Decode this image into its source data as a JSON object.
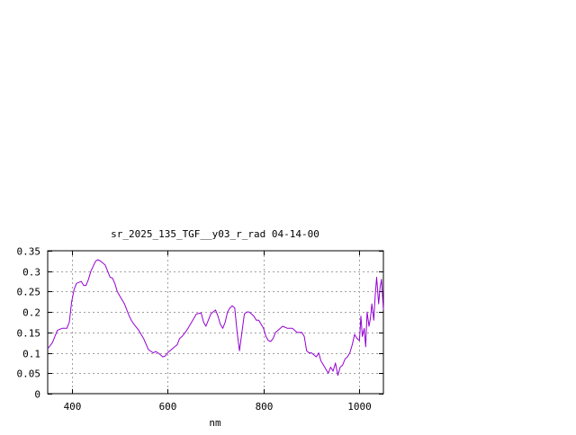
{
  "chart_data": {
    "type": "line",
    "title": "sr_2025_135_TGF__y03_r_rad 04-14-00",
    "xlabel": "nm",
    "ylabel": "",
    "xlim": [
      350,
      1050
    ],
    "ylim": [
      0,
      0.35
    ],
    "xticks": [
      400,
      600,
      800,
      1000
    ],
    "yticks": [
      0,
      0.05,
      0.1,
      0.15,
      0.2,
      0.25,
      0.3,
      0.35
    ],
    "xtick_labels": [
      "400",
      "600",
      "800",
      "1000"
    ],
    "ytick_labels": [
      "0",
      "0.05",
      "0.1",
      "0.15",
      "0.2",
      "0.25",
      "0.3",
      "0.35"
    ],
    "grid": true,
    "line_color": "#9400d3",
    "series": [
      {
        "x": [
          350,
          360,
          370,
          380,
          390,
          395,
          400,
          405,
          410,
          420,
          425,
          430,
          435,
          440,
          450,
          455,
          460,
          470,
          475,
          480,
          485,
          490,
          495,
          500,
          510,
          520,
          525,
          530,
          540,
          550,
          560,
          570,
          575,
          580,
          585,
          590,
          595,
          600,
          605,
          610,
          620,
          625,
          630,
          640,
          650,
          660,
          670,
          675,
          680,
          685,
          690,
          695,
          700,
          705,
          710,
          715,
          720,
          725,
          730,
          735,
          740,
          745,
          750,
          755,
          760,
          765,
          770,
          775,
          780,
          785,
          790,
          795,
          800,
          805,
          810,
          815,
          820,
          825,
          830,
          840,
          850,
          860,
          870,
          880,
          885,
          890,
          895,
          900,
          905,
          910,
          915,
          920,
          925,
          930,
          935,
          940,
          945,
          950,
          955,
          960,
          965,
          970,
          975,
          980,
          985,
          990,
          995,
          1000,
          1003,
          1006,
          1010,
          1013,
          1016,
          1020,
          1023,
          1026,
          1030,
          1033,
          1036,
          1040,
          1043,
          1046,
          1050
        ],
        "y": [
          0.11,
          0.125,
          0.155,
          0.16,
          0.16,
          0.175,
          0.225,
          0.255,
          0.27,
          0.275,
          0.265,
          0.265,
          0.28,
          0.3,
          0.325,
          0.328,
          0.325,
          0.315,
          0.3,
          0.285,
          0.283,
          0.27,
          0.25,
          0.24,
          0.22,
          0.19,
          0.178,
          0.17,
          0.155,
          0.135,
          0.108,
          0.1,
          0.103,
          0.1,
          0.095,
          0.09,
          0.092,
          0.1,
          0.105,
          0.11,
          0.12,
          0.135,
          0.14,
          0.155,
          0.175,
          0.195,
          0.198,
          0.175,
          0.165,
          0.18,
          0.195,
          0.2,
          0.205,
          0.19,
          0.17,
          0.16,
          0.175,
          0.2,
          0.21,
          0.215,
          0.21,
          0.15,
          0.105,
          0.15,
          0.195,
          0.2,
          0.2,
          0.195,
          0.19,
          0.18,
          0.18,
          0.17,
          0.16,
          0.14,
          0.13,
          0.128,
          0.135,
          0.15,
          0.155,
          0.165,
          0.16,
          0.16,
          0.15,
          0.15,
          0.14,
          0.105,
          0.1,
          0.1,
          0.095,
          0.09,
          0.1,
          0.08,
          0.07,
          0.06,
          0.05,
          0.065,
          0.055,
          0.075,
          0.045,
          0.065,
          0.07,
          0.085,
          0.09,
          0.1,
          0.12,
          0.145,
          0.135,
          0.13,
          0.19,
          0.14,
          0.16,
          0.115,
          0.2,
          0.165,
          0.185,
          0.22,
          0.18,
          0.24,
          0.285,
          0.22,
          0.26,
          0.28,
          0.205
        ]
      }
    ]
  }
}
